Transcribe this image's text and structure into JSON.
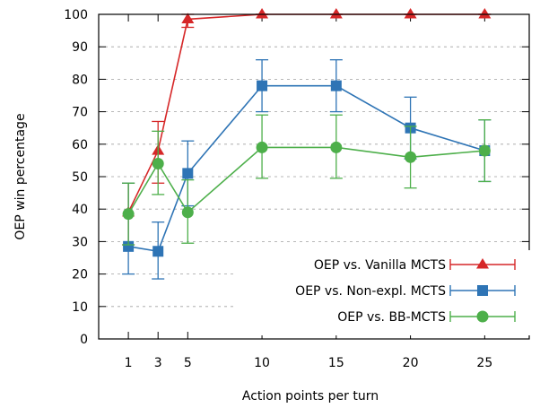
{
  "chart_data": {
    "type": "line",
    "title": "",
    "xlabel": "Action points per turn",
    "ylabel": "OEP win percentage",
    "x": [
      1,
      3,
      5,
      10,
      15,
      20,
      25
    ],
    "x_ticks": [
      "1",
      "3",
      "5",
      "10",
      "15",
      "20",
      "25"
    ],
    "ylim": [
      0,
      100
    ],
    "y_ticks": [
      "0",
      "10",
      "20",
      "30",
      "40",
      "50",
      "60",
      "70",
      "80",
      "90",
      "100"
    ],
    "grid": "horizontal dashed",
    "legend_position": "bottom-right",
    "series": [
      {
        "name": "OEP vs. Vanilla MCTS",
        "color": "#d62728",
        "marker": "triangle",
        "values": [
          39,
          58,
          98.5,
          100,
          100,
          100,
          100
        ],
        "err_low": [
          29,
          48,
          96,
          100,
          100,
          100,
          100
        ],
        "err_high": [
          48,
          67,
          100,
          100,
          100,
          100,
          100
        ]
      },
      {
        "name": "OEP vs. Non-expl. MCTS",
        "color": "#2e74b5",
        "marker": "square",
        "values": [
          28.5,
          27,
          51,
          78,
          78,
          65,
          58
        ],
        "err_low": [
          20,
          18.5,
          41,
          70,
          70,
          55.5,
          48.5
        ],
        "err_high": [
          48,
          36,
          61,
          86,
          86,
          74.5,
          67.5
        ]
      },
      {
        "name": "OEP vs. BB-MCTS",
        "color": "#4daf4a",
        "marker": "circle",
        "values": [
          38.5,
          54,
          39,
          59,
          59,
          56,
          58
        ],
        "err_low": [
          29,
          44.5,
          29.5,
          49.5,
          49.5,
          46.5,
          48.5
        ],
        "err_high": [
          48,
          64,
          49,
          69,
          69,
          65.5,
          67.5
        ]
      }
    ]
  }
}
